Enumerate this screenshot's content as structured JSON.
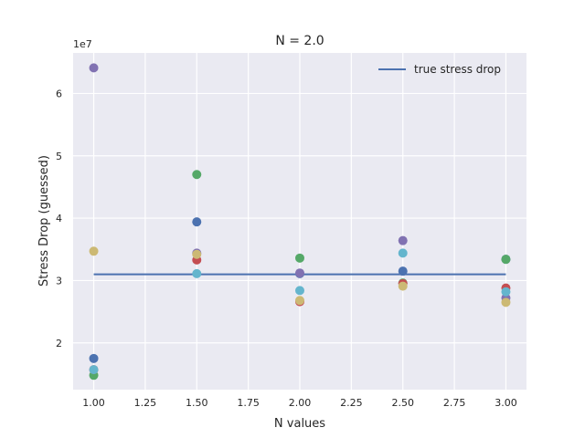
{
  "chart_data": {
    "type": "scatter",
    "title": "N = 2.0",
    "xlabel": "N values",
    "ylabel": "Stress Drop (guessed)",
    "y_scale_label": "1e7",
    "xlim": [
      0.9,
      3.1
    ],
    "ylim": [
      1.25,
      6.65
    ],
    "x_ticks": [
      1.0,
      1.25,
      1.5,
      1.75,
      2.0,
      2.25,
      2.5,
      2.75,
      3.0
    ],
    "x_tick_labels": [
      "1.00",
      "1.25",
      "1.50",
      "1.75",
      "2.00",
      "2.25",
      "2.50",
      "2.75",
      "3.00"
    ],
    "y_ticks": [
      2,
      3,
      4,
      5,
      6
    ],
    "y_tick_labels": [
      "2",
      "3",
      "4",
      "5",
      "6"
    ],
    "grid": true,
    "legend_position": "top-right",
    "line": {
      "name": "true stress drop",
      "x": [
        1.0,
        3.0
      ],
      "y": [
        3.1,
        3.1
      ],
      "color": "#4c72b0"
    },
    "series": [
      {
        "color": "#4c72b0",
        "x": [
          1.0,
          1.5,
          2.0,
          2.5,
          3.0
        ],
        "y": [
          1.75,
          3.94,
          3.11,
          3.15,
          3.34
        ]
      },
      {
        "color": "#55a868",
        "x": [
          1.0,
          1.5,
          2.0,
          2.5,
          3.0
        ],
        "y": [
          1.48,
          4.7,
          3.36,
          2.96,
          3.34
        ]
      },
      {
        "color": "#c44e52",
        "x": [
          1.0,
          1.5,
          2.0,
          2.5,
          3.0
        ],
        "y": [
          1.57,
          3.33,
          2.66,
          2.95,
          2.88
        ]
      },
      {
        "color": "#8172b2",
        "x": [
          1.0,
          1.5,
          2.0,
          2.5,
          3.0
        ],
        "y": [
          6.41,
          3.44,
          3.12,
          3.64,
          2.72
        ]
      },
      {
        "color": "#ccb974",
        "x": [
          1.0,
          1.5,
          2.0,
          2.5,
          3.0
        ],
        "y": [
          3.47,
          3.42,
          2.68,
          2.91,
          2.65
        ]
      },
      {
        "color": "#64b5cd",
        "x": [
          1.0,
          1.5,
          2.0,
          2.5,
          3.0
        ],
        "y": [
          1.57,
          3.11,
          2.84,
          3.44,
          2.82
        ]
      }
    ]
  }
}
